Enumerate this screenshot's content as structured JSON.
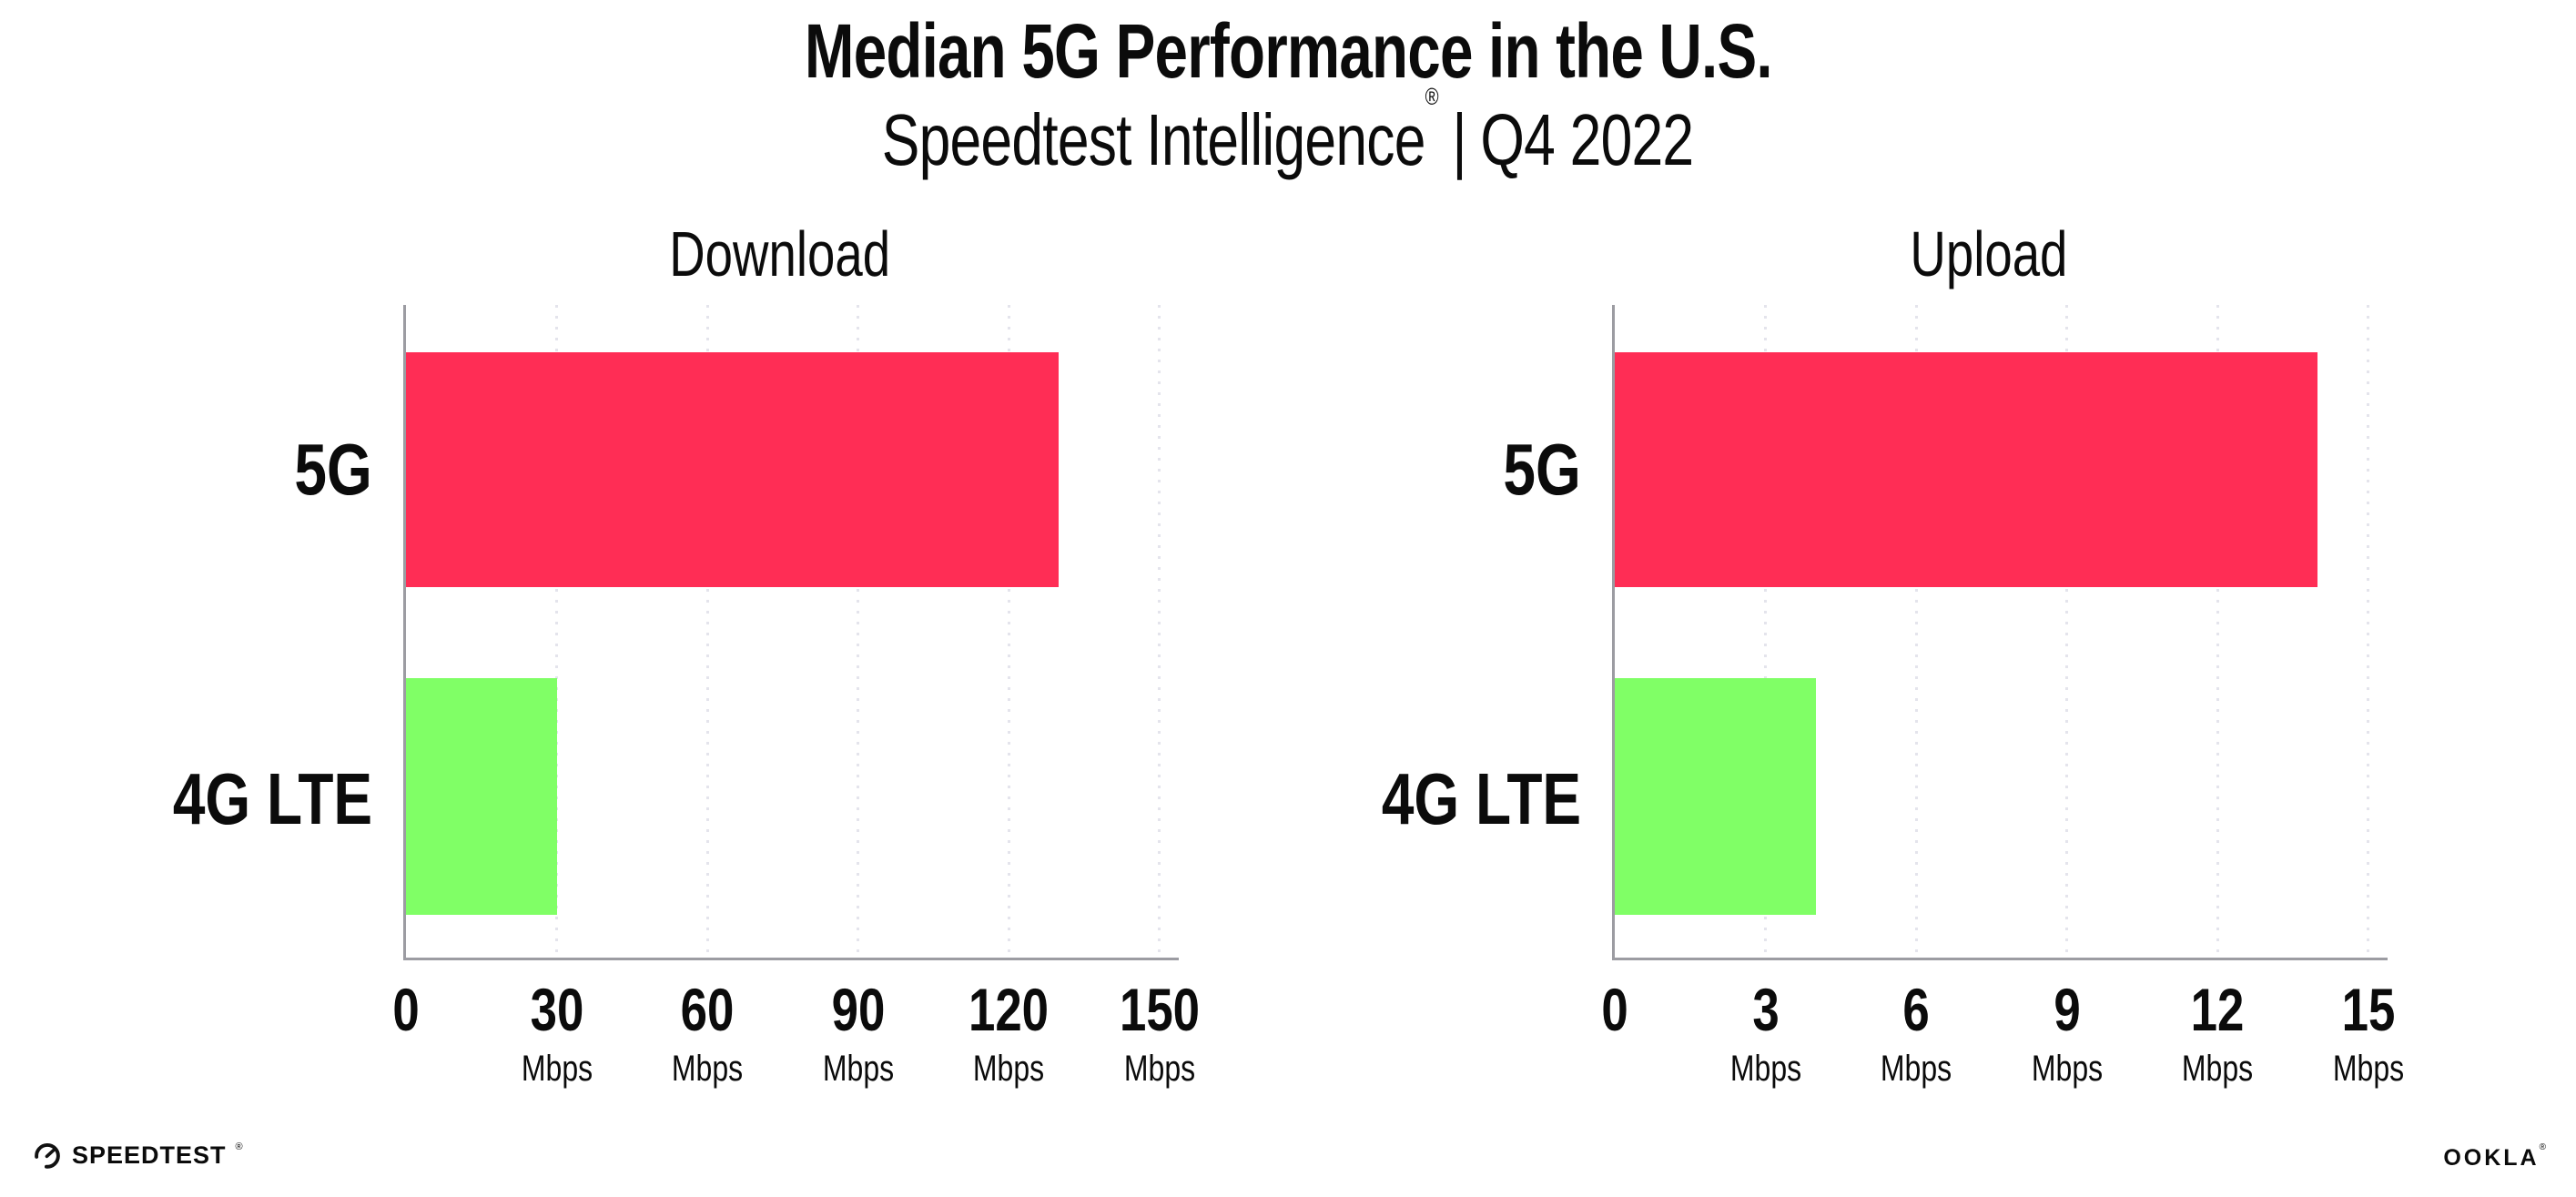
{
  "header": {
    "title": "Median 5G Performance in the U.S.",
    "subtitle_brand": "Speedtest Intelligence",
    "subtitle_reg": "®",
    "subtitle_sep": "|",
    "subtitle_period": "Q4 2022"
  },
  "chart_data": [
    {
      "type": "bar",
      "orientation": "horizontal",
      "title": "Download",
      "categories": [
        "5G",
        "4G LTE"
      ],
      "values": [
        130,
        30
      ],
      "unit": "Mbps",
      "xlim": [
        0,
        150
      ],
      "xticks": [
        0,
        30,
        60,
        90,
        120,
        150
      ],
      "ticks": [
        {
          "label": "0",
          "unit": ""
        },
        {
          "label": "30",
          "unit": "Mbps"
        },
        {
          "label": "60",
          "unit": "Mbps"
        },
        {
          "label": "90",
          "unit": "Mbps"
        },
        {
          "label": "120",
          "unit": "Mbps"
        },
        {
          "label": "150",
          "unit": "Mbps"
        }
      ],
      "bar_colors": [
        "#FF2D55",
        "#80FF66"
      ],
      "grid": "dotted-vertical",
      "legend": "none"
    },
    {
      "type": "bar",
      "orientation": "horizontal",
      "title": "Upload",
      "categories": [
        "5G",
        "4G LTE"
      ],
      "values": [
        14,
        4
      ],
      "unit": "Mbps",
      "xlim": [
        0,
        15
      ],
      "xticks": [
        0,
        3,
        6,
        9,
        12,
        15
      ],
      "ticks": [
        {
          "label": "0",
          "unit": ""
        },
        {
          "label": "3",
          "unit": "Mbps"
        },
        {
          "label": "6",
          "unit": "Mbps"
        },
        {
          "label": "9",
          "unit": "Mbps"
        },
        {
          "label": "12",
          "unit": "Mbps"
        },
        {
          "label": "15",
          "unit": "Mbps"
        }
      ],
      "bar_colors": [
        "#FF2D55",
        "#80FF66"
      ],
      "grid": "dotted-vertical",
      "legend": "none"
    }
  ],
  "colors": {
    "bar_5g": "#FF2D55",
    "bar_4g_lte": "#80FF66",
    "axis": "#9C9CA2",
    "gridline": "#E4E4EC",
    "text": "#0B0B0B",
    "background": "#FFFFFF"
  },
  "footer": {
    "speedtest_label": "SPEEDTEST",
    "speedtest_mark": "®",
    "ookla_label": "OOKLA",
    "ookla_mark": "®"
  }
}
